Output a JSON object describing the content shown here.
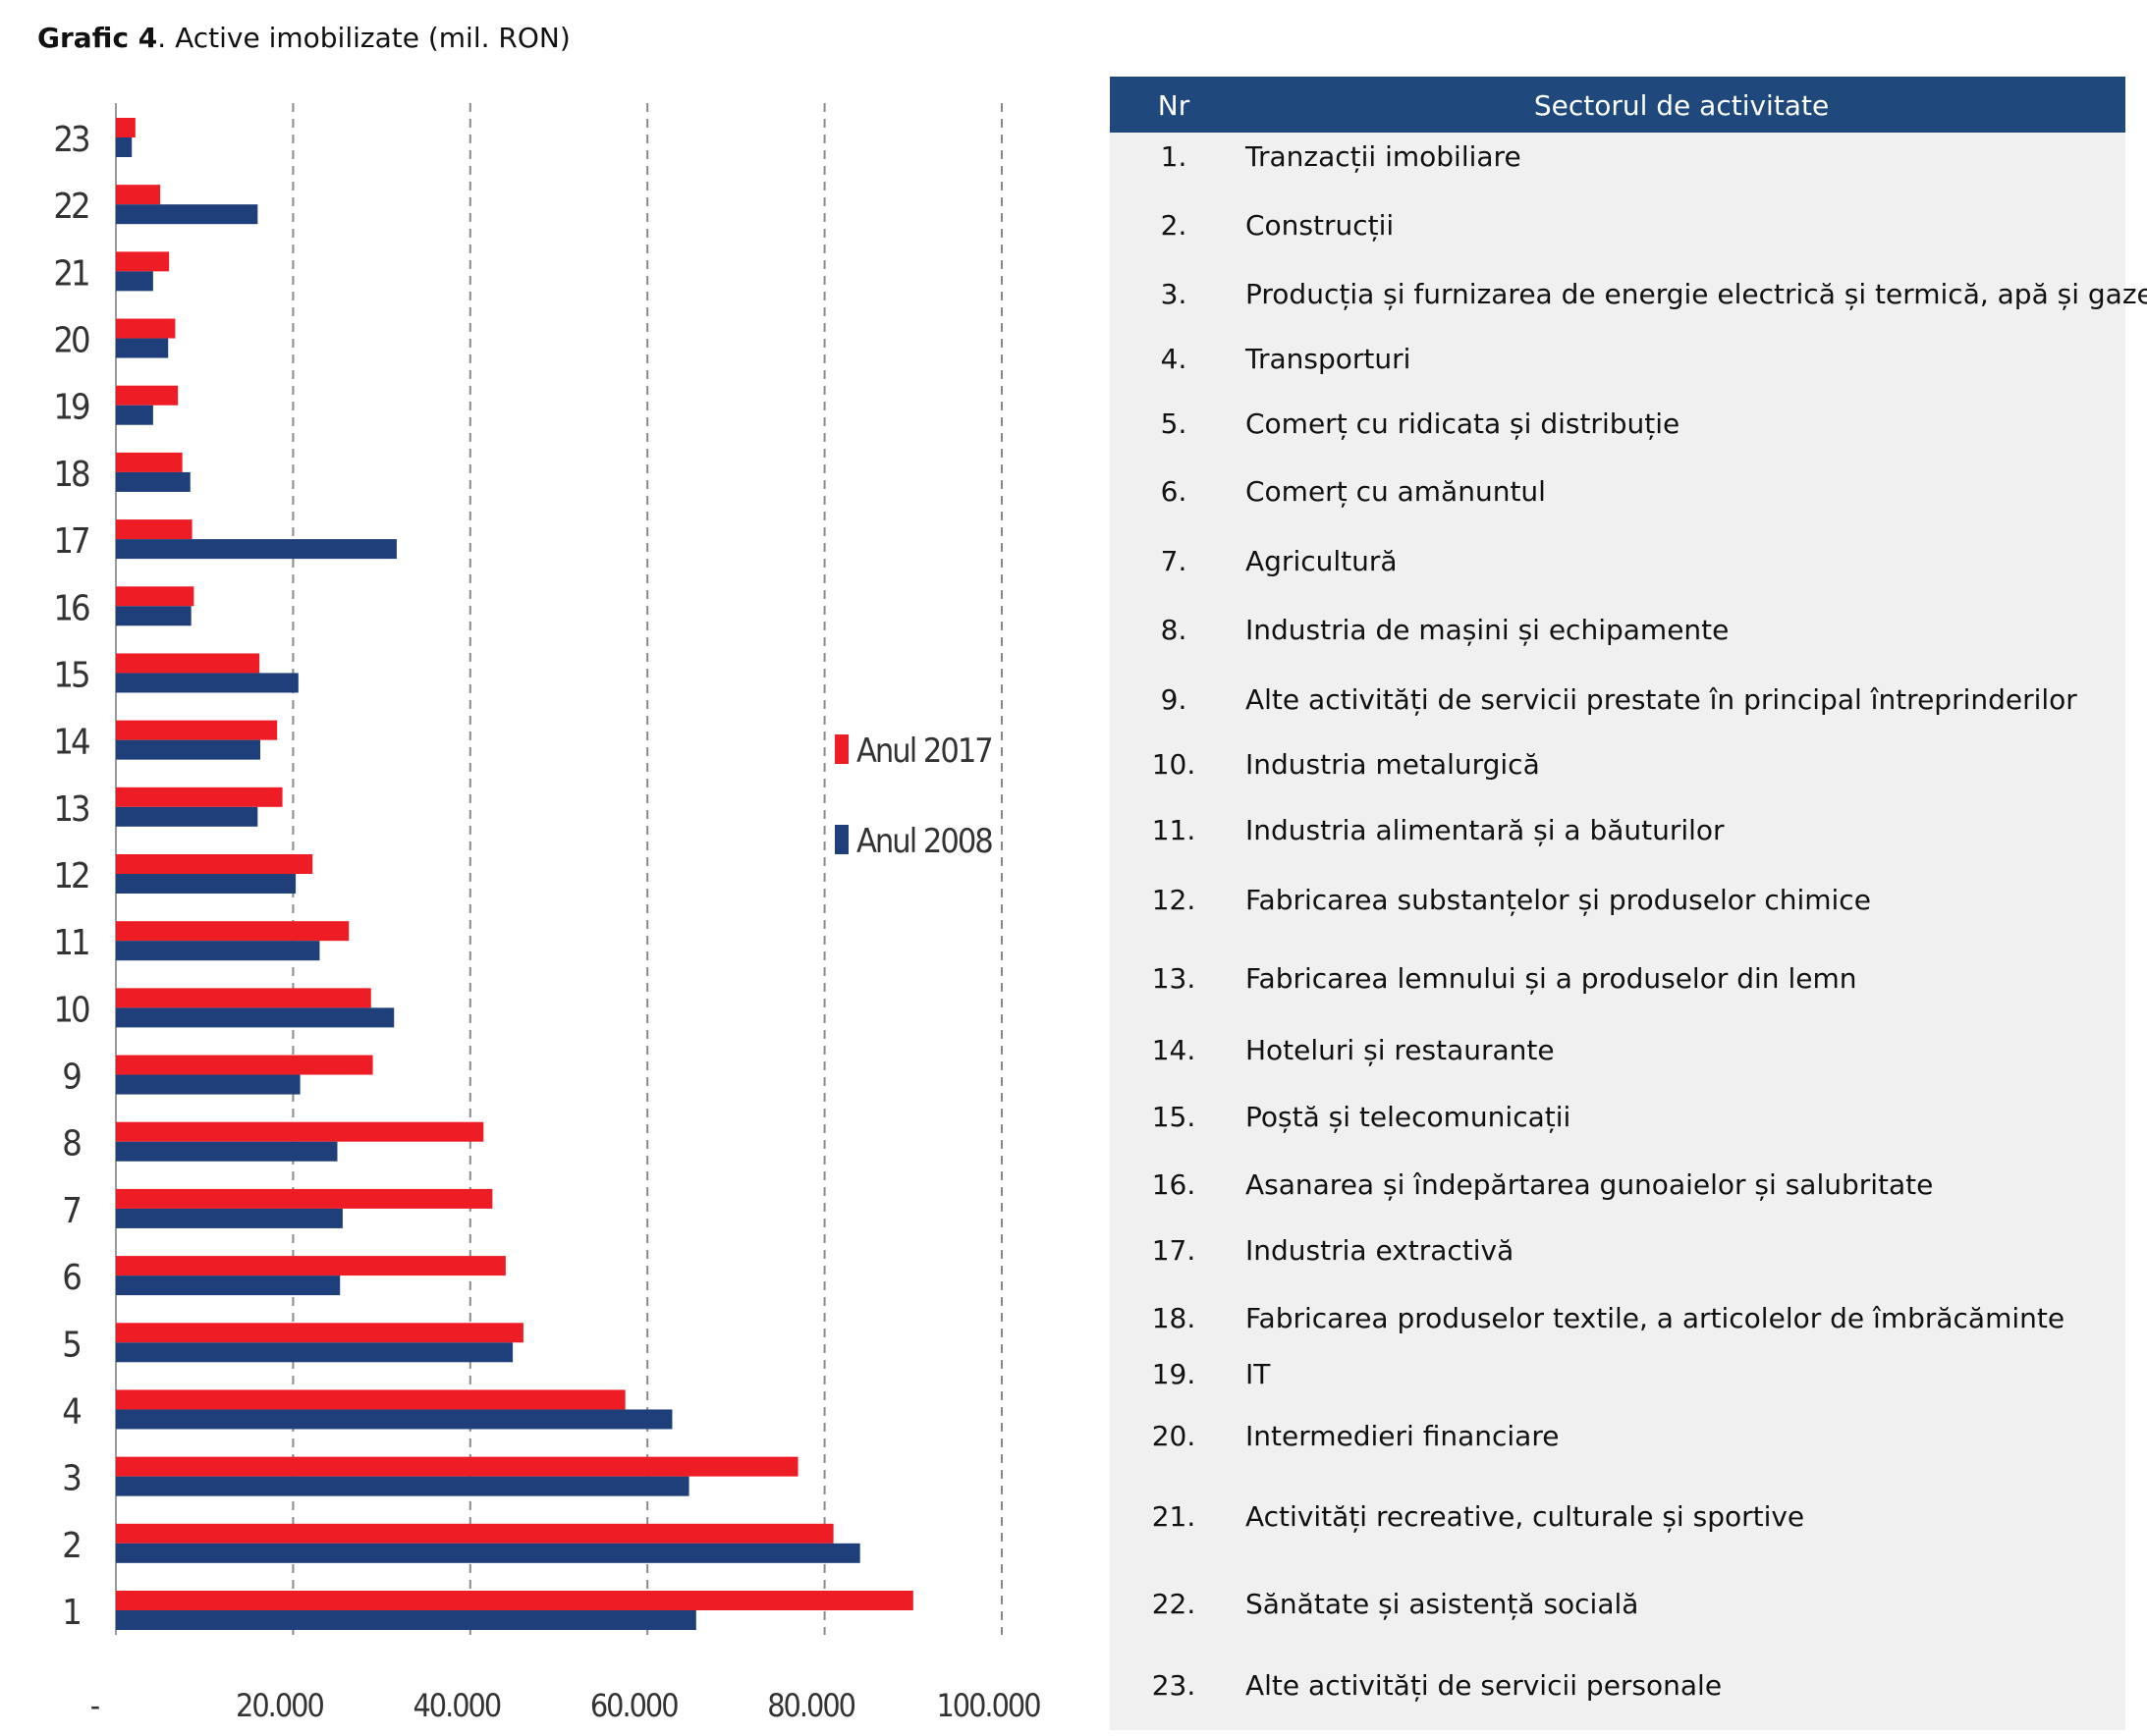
{
  "figure_title": {
    "prefix": "Grafic 4",
    "rest": ". Active imobilizate (mil. RON)"
  },
  "colors": {
    "anul_2017": "#ee1c25",
    "anul_2008": "#1f3f7a",
    "header_bg": "#1f497d",
    "table_bg": "#f0f0f0"
  },
  "chart_data": {
    "type": "bar",
    "orientation": "horizontal",
    "title": "",
    "xlabel": "",
    "ylabel": "",
    "categories": [
      "1",
      "2",
      "3",
      "4",
      "5",
      "6",
      "7",
      "8",
      "9",
      "10",
      "11",
      "12",
      "13",
      "14",
      "15",
      "16",
      "17",
      "18",
      "19",
      "20",
      "21",
      "22",
      "23"
    ],
    "series": [
      {
        "name": "Anul 2017",
        "values": [
          90000,
          81000,
          77000,
          57500,
          46000,
          44000,
          42500,
          41500,
          29000,
          28800,
          26300,
          22200,
          18800,
          18200,
          16200,
          8800,
          8600,
          7500,
          7000,
          6700,
          6000,
          5000,
          2200
        ]
      },
      {
        "name": "Anul 2008",
        "values": [
          65500,
          84000,
          64700,
          62800,
          44800,
          25300,
          25600,
          25000,
          20800,
          31400,
          23000,
          20300,
          16000,
          16300,
          20600,
          8500,
          31700,
          8400,
          4200,
          5900,
          4200,
          16000,
          1800
        ]
      }
    ],
    "xlim": [
      0,
      100000
    ],
    "xticks": [
      "-",
      "20.000",
      "40.000",
      "60.000",
      "80.000",
      "100.000"
    ],
    "grid": "vertical dashed",
    "legend_position": "right"
  },
  "table": {
    "header_nr": "Nr",
    "header_sector": "Sectorul de activitate",
    "rows": [
      {
        "nr": "1.",
        "sector": "Tranzacții imobiliare"
      },
      {
        "nr": "2.",
        "sector": "Construcții"
      },
      {
        "nr": "3.",
        "sector": "Producția și furnizarea de energie electrică și termică, apă și gaze"
      },
      {
        "nr": "4.",
        "sector": "Transporturi"
      },
      {
        "nr": "5.",
        "sector": "Comerț cu ridicata și distribuție"
      },
      {
        "nr": "6.",
        "sector": "Comerț cu amănuntul"
      },
      {
        "nr": "7.",
        "sector": "Agricultură"
      },
      {
        "nr": "8.",
        "sector": "Industria de mașini și echipamente"
      },
      {
        "nr": "9.",
        "sector": "Alte activități de servicii prestate în principal întreprinderilor"
      },
      {
        "nr": "10.",
        "sector": "Industria metalurgică"
      },
      {
        "nr": "11.",
        "sector": "Industria alimentară și a băuturilor"
      },
      {
        "nr": "12.",
        "sector": "Fabricarea substanțelor și produselor chimice"
      },
      {
        "nr": "13.",
        "sector": "Fabricarea lemnului și a produselor din lemn"
      },
      {
        "nr": "14.",
        "sector": "Hoteluri și restaurante"
      },
      {
        "nr": "15.",
        "sector": "Poștă și telecomunicații"
      },
      {
        "nr": "16.",
        "sector": "Asanarea și îndepărtarea gunoaielor și salubritate"
      },
      {
        "nr": "17.",
        "sector": "Industria extractivă"
      },
      {
        "nr": "18.",
        "sector": "Fabricarea produselor textile, a articolelor de îmbrăcăminte"
      },
      {
        "nr": "19.",
        "sector": "IT"
      },
      {
        "nr": "20.",
        "sector": "Intermedieri financiare"
      },
      {
        "nr": "21.",
        "sector": "Activități recreative, culturale și sportive"
      },
      {
        "nr": "22.",
        "sector": "Sănătate și asistență socială"
      },
      {
        "nr": "23.",
        "sector": "Alte activități de servicii personale"
      }
    ]
  }
}
